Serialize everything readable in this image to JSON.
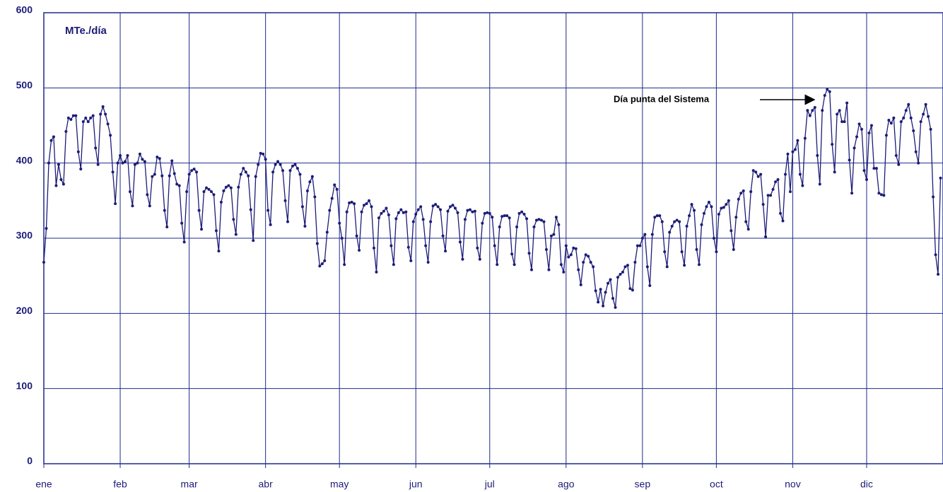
{
  "chart_data": {
    "type": "line",
    "annotations": [
      "MTe./día",
      "Día punta del Sistema"
    ],
    "xlim": [
      1,
      366
    ],
    "xticks": [
      {
        "value": 1,
        "label": "ene"
      },
      {
        "value": 32,
        "label": "feb"
      },
      {
        "value": 60,
        "label": "mar"
      },
      {
        "value": 91,
        "label": "abr"
      },
      {
        "value": 121,
        "label": "may"
      },
      {
        "value": 152,
        "label": "jun"
      },
      {
        "value": 182,
        "label": "jul"
      },
      {
        "value": 213,
        "label": "ago"
      },
      {
        "value": 244,
        "label": "sep"
      },
      {
        "value": 274,
        "label": "oct"
      },
      {
        "value": 305,
        "label": "nov"
      },
      {
        "value": 335,
        "label": "dic"
      }
    ],
    "ylim": [
      0,
      600
    ],
    "yticks": [
      0,
      100,
      200,
      300,
      400,
      500,
      600
    ],
    "grid": true,
    "x": [
      1,
      2,
      3,
      4,
      5,
      6,
      7,
      8,
      9,
      10,
      11,
      12,
      13,
      14,
      15,
      16,
      17,
      18,
      19,
      20,
      21,
      22,
      23,
      24,
      25,
      26,
      27,
      28,
      29,
      30,
      31,
      32,
      33,
      34,
      35,
      36,
      37,
      38,
      39,
      40,
      41,
      42,
      43,
      44,
      45,
      46,
      47,
      48,
      49,
      50,
      51,
      52,
      53,
      54,
      55,
      56,
      57,
      58,
      59,
      60,
      61,
      62,
      63,
      64,
      65,
      66,
      67,
      68,
      69,
      70,
      71,
      72,
      73,
      74,
      75,
      76,
      77,
      78,
      79,
      80,
      81,
      82,
      83,
      84,
      85,
      86,
      87,
      88,
      89,
      90,
      91,
      92,
      93,
      94,
      95,
      96,
      97,
      98,
      99,
      100,
      101,
      102,
      103,
      104,
      105,
      106,
      107,
      108,
      109,
      110,
      111,
      112,
      113,
      114,
      115,
      116,
      117,
      118,
      119,
      120,
      121,
      122,
      123,
      124,
      125,
      126,
      127,
      128,
      129,
      130,
      131,
      132,
      133,
      134,
      135,
      136,
      137,
      138,
      139,
      140,
      141,
      142,
      143,
      144,
      145,
      146,
      147,
      148,
      149,
      150,
      151,
      152,
      153,
      154,
      155,
      156,
      157,
      158,
      159,
      160,
      161,
      162,
      163,
      164,
      165,
      166,
      167,
      168,
      169,
      170,
      171,
      172,
      173,
      174,
      175,
      176,
      177,
      178,
      179,
      180,
      181,
      182,
      183,
      184,
      185,
      186,
      187,
      188,
      189,
      190,
      191,
      192,
      193,
      194,
      195,
      196,
      197,
      198,
      199,
      200,
      201,
      202,
      203,
      204,
      205,
      206,
      207,
      208,
      209,
      210,
      211,
      212,
      213,
      214,
      215,
      216,
      217,
      218,
      219,
      220,
      221,
      222,
      223,
      224,
      225,
      226,
      227,
      228,
      229,
      230,
      231,
      232,
      233,
      234,
      235,
      236,
      237,
      238,
      239,
      240,
      241,
      242,
      243,
      244,
      245,
      246,
      247,
      248,
      249,
      250,
      251,
      252,
      253,
      254,
      255,
      256,
      257,
      258,
      259,
      260,
      261,
      262,
      263,
      264,
      265,
      266,
      267,
      268,
      269,
      270,
      271,
      272,
      273,
      274,
      275,
      276,
      277,
      278,
      279,
      280,
      281,
      282,
      283,
      284,
      285,
      286,
      287,
      288,
      289,
      290,
      291,
      292,
      293,
      294,
      295,
      296,
      297,
      298,
      299,
      300,
      301,
      302,
      303,
      304,
      305,
      306,
      307,
      308,
      309,
      310,
      311,
      312,
      313,
      314,
      315,
      316,
      317,
      318,
      319,
      320,
      321,
      322,
      323,
      324,
      325,
      326,
      327,
      328,
      329,
      330,
      331,
      332,
      333,
      334,
      335,
      336,
      337,
      338,
      339,
      340,
      341,
      342,
      343,
      344,
      345,
      346,
      347,
      348,
      349,
      350,
      351,
      352,
      353,
      354,
      355,
      356,
      357,
      358,
      359,
      360,
      361,
      362,
      363,
      364,
      365
    ],
    "series": [
      {
        "color": "#1c1c78",
        "values": [
          268,
          313,
          400,
          430,
          435,
          370,
          398,
          378,
          372,
          442,
          460,
          458,
          463,
          463,
          415,
          392,
          455,
          460,
          455,
          460,
          463,
          420,
          398,
          465,
          475,
          465,
          452,
          437,
          388,
          346,
          400,
          410,
          400,
          402,
          410,
          362,
          343,
          398,
          400,
          412,
          405,
          402,
          358,
          343,
          382,
          385,
          408,
          406,
          383,
          337,
          315,
          383,
          403,
          386,
          372,
          370,
          320,
          295,
          362,
          385,
          390,
          392,
          388,
          337,
          312,
          362,
          367,
          365,
          362,
          358,
          310,
          283,
          348,
          363,
          368,
          370,
          367,
          325,
          305,
          368,
          385,
          393,
          388,
          383,
          338,
          297,
          382,
          398,
          413,
          412,
          405,
          337,
          318,
          388,
          398,
          402,
          398,
          390,
          350,
          322,
          390,
          396,
          398,
          393,
          385,
          342,
          316,
          363,
          375,
          382,
          355,
          293,
          263,
          266,
          270,
          308,
          337,
          353,
          371,
          365,
          320,
          300,
          265,
          335,
          347,
          348,
          346,
          303,
          284,
          335,
          344,
          346,
          350,
          342,
          287,
          255,
          327,
          333,
          336,
          340,
          331,
          290,
          265,
          326,
          334,
          338,
          334,
          335,
          288,
          270,
          322,
          332,
          338,
          342,
          325,
          290,
          268,
          322,
          343,
          345,
          342,
          338,
          303,
          283,
          336,
          342,
          344,
          340,
          334,
          295,
          272,
          325,
          337,
          338,
          335,
          336,
          287,
          272,
          320,
          333,
          334,
          333,
          328,
          290,
          265,
          315,
          329,
          330,
          330,
          327,
          279,
          265,
          315,
          333,
          335,
          332,
          326,
          280,
          258,
          315,
          324,
          325,
          324,
          322,
          285,
          258,
          303,
          305,
          328,
          318,
          265,
          255,
          290,
          275,
          278,
          287,
          286,
          258,
          238,
          268,
          278,
          276,
          268,
          262,
          230,
          215,
          232,
          210,
          228,
          240,
          245,
          220,
          208,
          248,
          252,
          255,
          262,
          264,
          233,
          231,
          268,
          290,
          290,
          300,
          305,
          262,
          237,
          305,
          328,
          330,
          330,
          322,
          282,
          262,
          308,
          316,
          322,
          324,
          322,
          282,
          264,
          316,
          330,
          345,
          337,
          285,
          265,
          318,
          333,
          342,
          348,
          342,
          300,
          282,
          332,
          340,
          341,
          345,
          350,
          310,
          285,
          328,
          352,
          360,
          363,
          322,
          312,
          362,
          390,
          388,
          382,
          385,
          345,
          302,
          357,
          357,
          365,
          375,
          378,
          333,
          323,
          385,
          412,
          362,
          415,
          418,
          430,
          385,
          370,
          433,
          470,
          463,
          470,
          474,
          410,
          372,
          470,
          490,
          498,
          495,
          425,
          388,
          465,
          470,
          455,
          455,
          480,
          404,
          360,
          420,
          435,
          452,
          445,
          390,
          378,
          440,
          450,
          393,
          393,
          360,
          358,
          357,
          437,
          457,
          453,
          460,
          410,
          398,
          455,
          460,
          470,
          478,
          460,
          443,
          415,
          400,
          455,
          465,
          478,
          462,
          445,
          355,
          278,
          252,
          380
        ]
      }
    ]
  }
}
